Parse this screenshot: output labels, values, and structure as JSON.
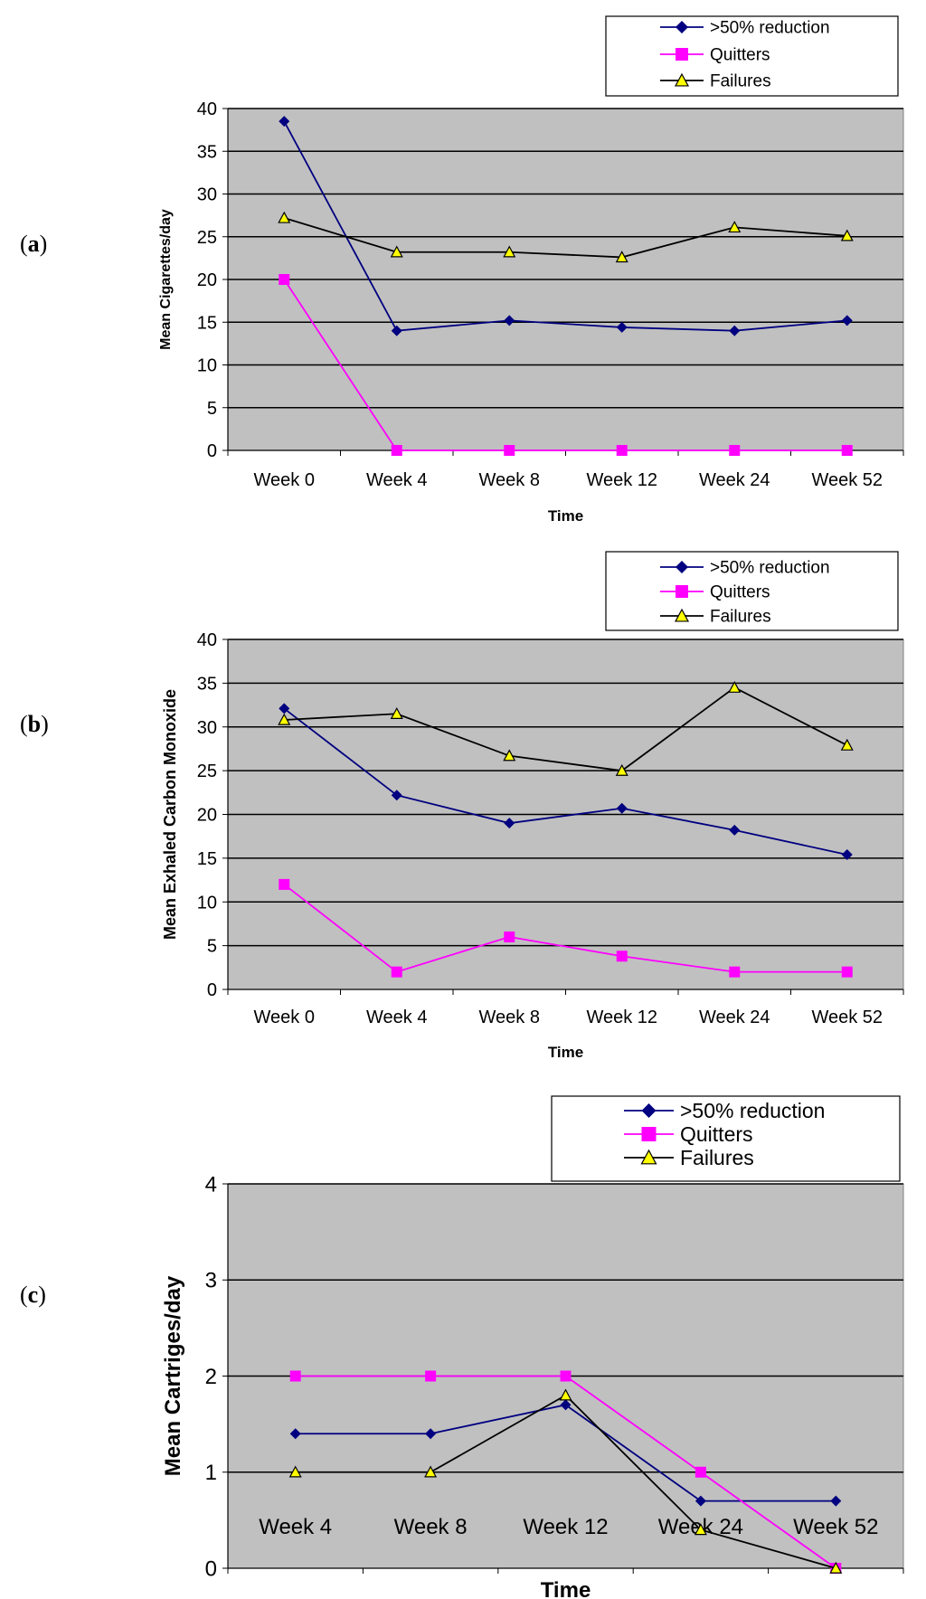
{
  "panels": [
    {
      "label_open": "(",
      "label_letter": "a",
      "label_close": ")"
    },
    {
      "label_open": "(",
      "label_letter": "b",
      "label_close": ")"
    },
    {
      "label_open": "(",
      "label_letter": "c",
      "label_close": ")"
    }
  ],
  "colors": {
    "reduction": "#000080",
    "quitters": "#ff00ff",
    "failures": "#000000",
    "failures_marker_fill": "#ffff00",
    "plot_bg": "#c0c0c0"
  },
  "chart_data": [
    {
      "type": "line",
      "title": "",
      "xlabel": "Time",
      "ylabel": "Mean Cigarettes/day",
      "categories": [
        "Week 0",
        "Week 4",
        "Week 8",
        "Week 12",
        "Week 24",
        "Week 52"
      ],
      "ylim": [
        0,
        40
      ],
      "yticks": [
        "0",
        "5",
        "10",
        "15",
        "20",
        "25",
        "30",
        "35",
        "40"
      ],
      "grid": true,
      "legend_position": "top-right",
      "series": [
        {
          "name": ">50% reduction",
          "marker": "diamond",
          "values": [
            38.5,
            14,
            15.2,
            14.4,
            14,
            15.2
          ]
        },
        {
          "name": "Quitters",
          "marker": "square",
          "values": [
            20,
            0,
            0,
            0,
            0,
            0
          ]
        },
        {
          "name": "Failures",
          "marker": "triangle",
          "values": [
            27.2,
            23.2,
            23.2,
            22.6,
            26.1,
            25.1
          ]
        }
      ]
    },
    {
      "type": "line",
      "title": "",
      "xlabel": "Time",
      "ylabel": "Mean Exhaled Carbon Monoxide",
      "categories": [
        "Week 0",
        "Week 4",
        "Week 8",
        "Week 12",
        "Week 24",
        "Week 52"
      ],
      "ylim": [
        0,
        40
      ],
      "yticks": [
        "0",
        "5",
        "10",
        "15",
        "20",
        "25",
        "30",
        "35",
        "40"
      ],
      "grid": true,
      "legend_position": "top-right",
      "series": [
        {
          "name": ">50% reduction",
          "marker": "diamond",
          "values": [
            32.1,
            22.2,
            19,
            20.7,
            18.2,
            15.4
          ]
        },
        {
          "name": "Quitters",
          "marker": "square",
          "values": [
            12,
            2,
            6,
            3.8,
            2,
            2
          ]
        },
        {
          "name": "Failures",
          "marker": "triangle",
          "values": [
            30.8,
            31.5,
            26.7,
            25,
            34.5,
            27.9
          ]
        }
      ]
    },
    {
      "type": "line",
      "title": "",
      "xlabel": "Time",
      "ylabel": "Mean Cartriges/day",
      "categories": [
        "Week 4",
        "Week 8",
        "Week 12",
        "Week 24",
        "Week 52"
      ],
      "ylim": [
        0,
        4
      ],
      "yticks": [
        "0",
        "1",
        "2",
        "3",
        "4"
      ],
      "grid": true,
      "legend_position": "top-right",
      "series": [
        {
          "name": ">50% reduction",
          "marker": "diamond",
          "values": [
            1.4,
            1.4,
            1.7,
            0.7,
            0.7
          ]
        },
        {
          "name": "Quitters",
          "marker": "square",
          "values": [
            2,
            2,
            2,
            1,
            0
          ]
        },
        {
          "name": "Failures",
          "marker": "triangle",
          "values": [
            1,
            1,
            1.8,
            0.4,
            0
          ]
        }
      ]
    }
  ]
}
